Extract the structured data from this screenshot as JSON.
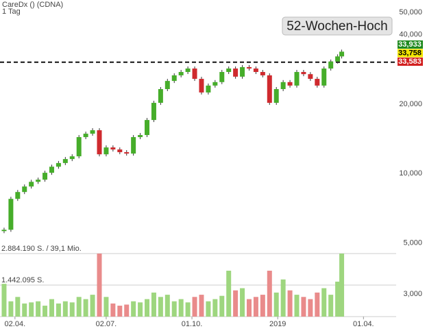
{
  "chart_data": {
    "type": "candlestick",
    "title": "CareDx () (CDNA)",
    "subtitle": "1 Tag",
    "annotation": "52-Wochen-Hoch",
    "log_scale": true,
    "x": [
      -8,
      -3,
      2,
      7,
      12,
      17,
      22,
      27,
      32,
      37,
      42,
      47,
      52,
      57,
      62,
      67,
      72,
      77,
      82,
      87,
      92,
      97,
      102,
      107,
      112,
      117,
      122,
      127,
      132,
      137,
      142,
      147,
      152,
      157,
      162,
      167,
      172,
      177,
      182,
      187,
      192,
      197,
      202,
      207,
      212,
      217,
      222,
      227,
      232,
      237,
      240
    ],
    "close": [
      5700,
      7760,
      8310,
      8780,
      9200,
      9400,
      10070,
      10700,
      11100,
      11550,
      11870,
      14380,
      14880,
      15400,
      12110,
      12970,
      12710,
      12370,
      12200,
      14380,
      14680,
      17060,
      20250,
      23230,
      25200,
      26650,
      27560,
      28530,
      25730,
      22460,
      24060,
      24910,
      27560,
      28530,
      26300,
      28930,
      28530,
      27560,
      26650,
      20250,
      23230,
      24910,
      24060,
      27560,
      26970,
      25730,
      24060,
      28530,
      30580,
      32200,
      33758
    ],
    "volume": [
      1500000,
      700000,
      900000,
      600000,
      650000,
      700000,
      500000,
      800000,
      600000,
      700000,
      650000,
      900000,
      800000,
      1000000,
      2884190,
      900000,
      600000,
      500000,
      550000,
      700000,
      650000,
      800000,
      1100000,
      900000,
      1000000,
      700000,
      800000,
      650000,
      900000,
      1000000,
      700000,
      800000,
      950000,
      2100000,
      1200000,
      1300000,
      800000,
      900000,
      1000000,
      2100000,
      1100000,
      1700000,
      1200000,
      1000000,
      900000,
      800000,
      1100000,
      1300000,
      1000000,
      1600000,
      2884190
    ],
    "up_color": "#46ad2a",
    "down_color": "#cf2a2e",
    "volume_up_color": "#9ed67f",
    "volume_down_color": "#e98b8b",
    "xlim": [
      -11,
      280
    ],
    "xticks": [
      {
        "value": 0,
        "label": "02.04."
      },
      {
        "value": 67,
        "label": "02.07."
      },
      {
        "value": 130,
        "label": "01.10."
      },
      {
        "value": 193,
        "label": "2019"
      },
      {
        "value": 256,
        "label": "01.04."
      }
    ],
    "ylim": [
      2394,
      56560
    ],
    "yticks": [
      {
        "value": 50000,
        "label": "50,000"
      },
      {
        "value": 40000,
        "label": "40,000"
      },
      {
        "value": 20000,
        "label": "20,000"
      },
      {
        "value": 10000,
        "label": "10,000"
      },
      {
        "value": 5000,
        "label": "5,000"
      },
      {
        "value": 3000,
        "label": "3,000"
      }
    ],
    "volume_lim": [
      0,
      2884190
    ],
    "volume_ticks": [
      {
        "value": 2884190,
        "label": "2.884.190 S. / 39,1 Mio."
      },
      {
        "value": 1442095,
        "label": "1.442.095 S."
      }
    ],
    "high_line": 30400,
    "price_labels": [
      {
        "value": 33933,
        "label": "33,933",
        "color": "#1f8a1f"
      },
      {
        "value": 33758,
        "label": "33,758",
        "color": "#f2e600"
      },
      {
        "value": 33583,
        "label": "33,583",
        "color": "#d22020"
      }
    ]
  }
}
